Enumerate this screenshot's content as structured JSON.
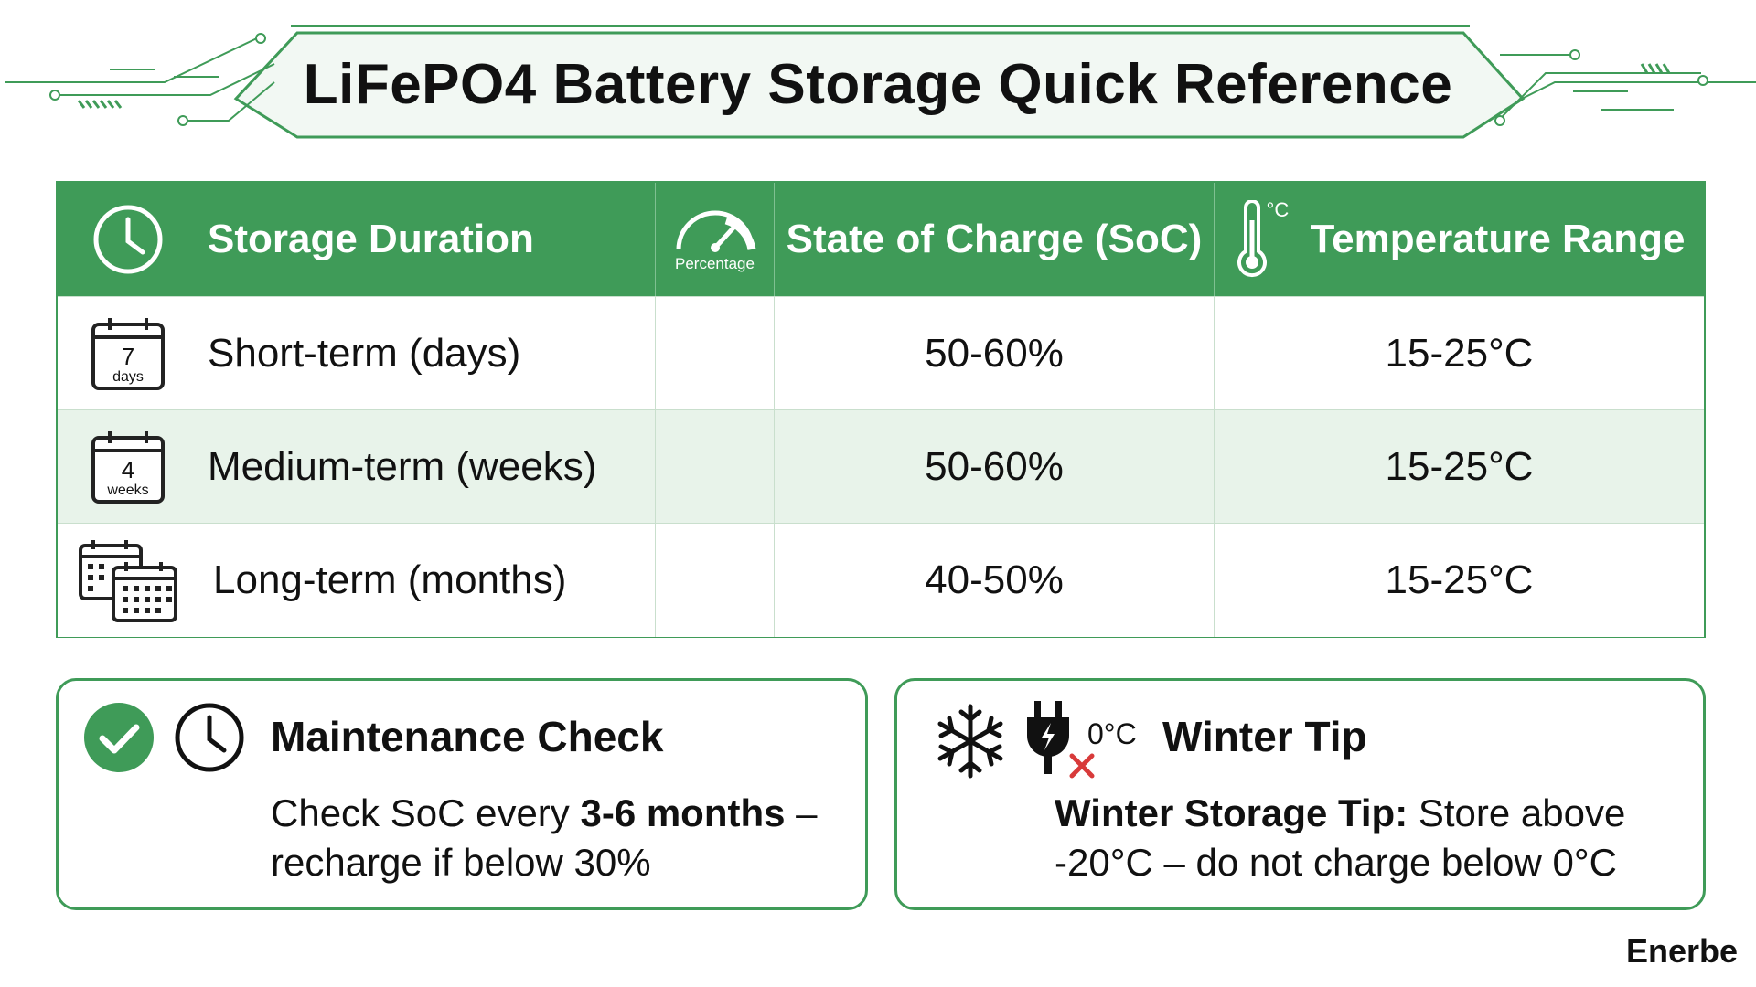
{
  "title": "LiFePO4 Battery Storage Quick Reference",
  "colors": {
    "accent": "#3f9b58",
    "row_alt": "#e8f3ea",
    "text": "#111111"
  },
  "table": {
    "headers": {
      "duration_icon": "clock-icon",
      "duration": "Storage Duration",
      "gauge_icon": "gauge-icon",
      "gauge_label": "Percentage",
      "soc": "State of Charge (SoC)",
      "temp_icon": "thermometer-icon",
      "temp_unit": "°C",
      "temp": "Temperature Range"
    },
    "rows": [
      {
        "icon": "calendar-icon",
        "icon_number": "7",
        "icon_unit": "days",
        "duration": "Short-term (days)",
        "soc": "50-60%",
        "temp": "15-25°C"
      },
      {
        "icon": "calendar-icon",
        "icon_number": "4",
        "icon_unit": "weeks",
        "duration": "Medium-term (weeks)",
        "soc": "50-60%",
        "temp": "15-25°C"
      },
      {
        "icon": "calendars-icon",
        "duration": "Long-term (months)",
        "soc": "40-50%",
        "temp": "15-25°C"
      }
    ]
  },
  "maintenance": {
    "title": "Maintenance Check",
    "body_pre": "Check SoC every ",
    "body_bold": "3-6 months",
    "body_post": " – recharge if below 30%"
  },
  "winter": {
    "title": "Winter Tip",
    "plug_label": "0°C",
    "body_bold": "Winter Storage Tip:",
    "body_rest": " Store above -20°C – do not charge below 0°C"
  },
  "brand": "Enerbe"
}
